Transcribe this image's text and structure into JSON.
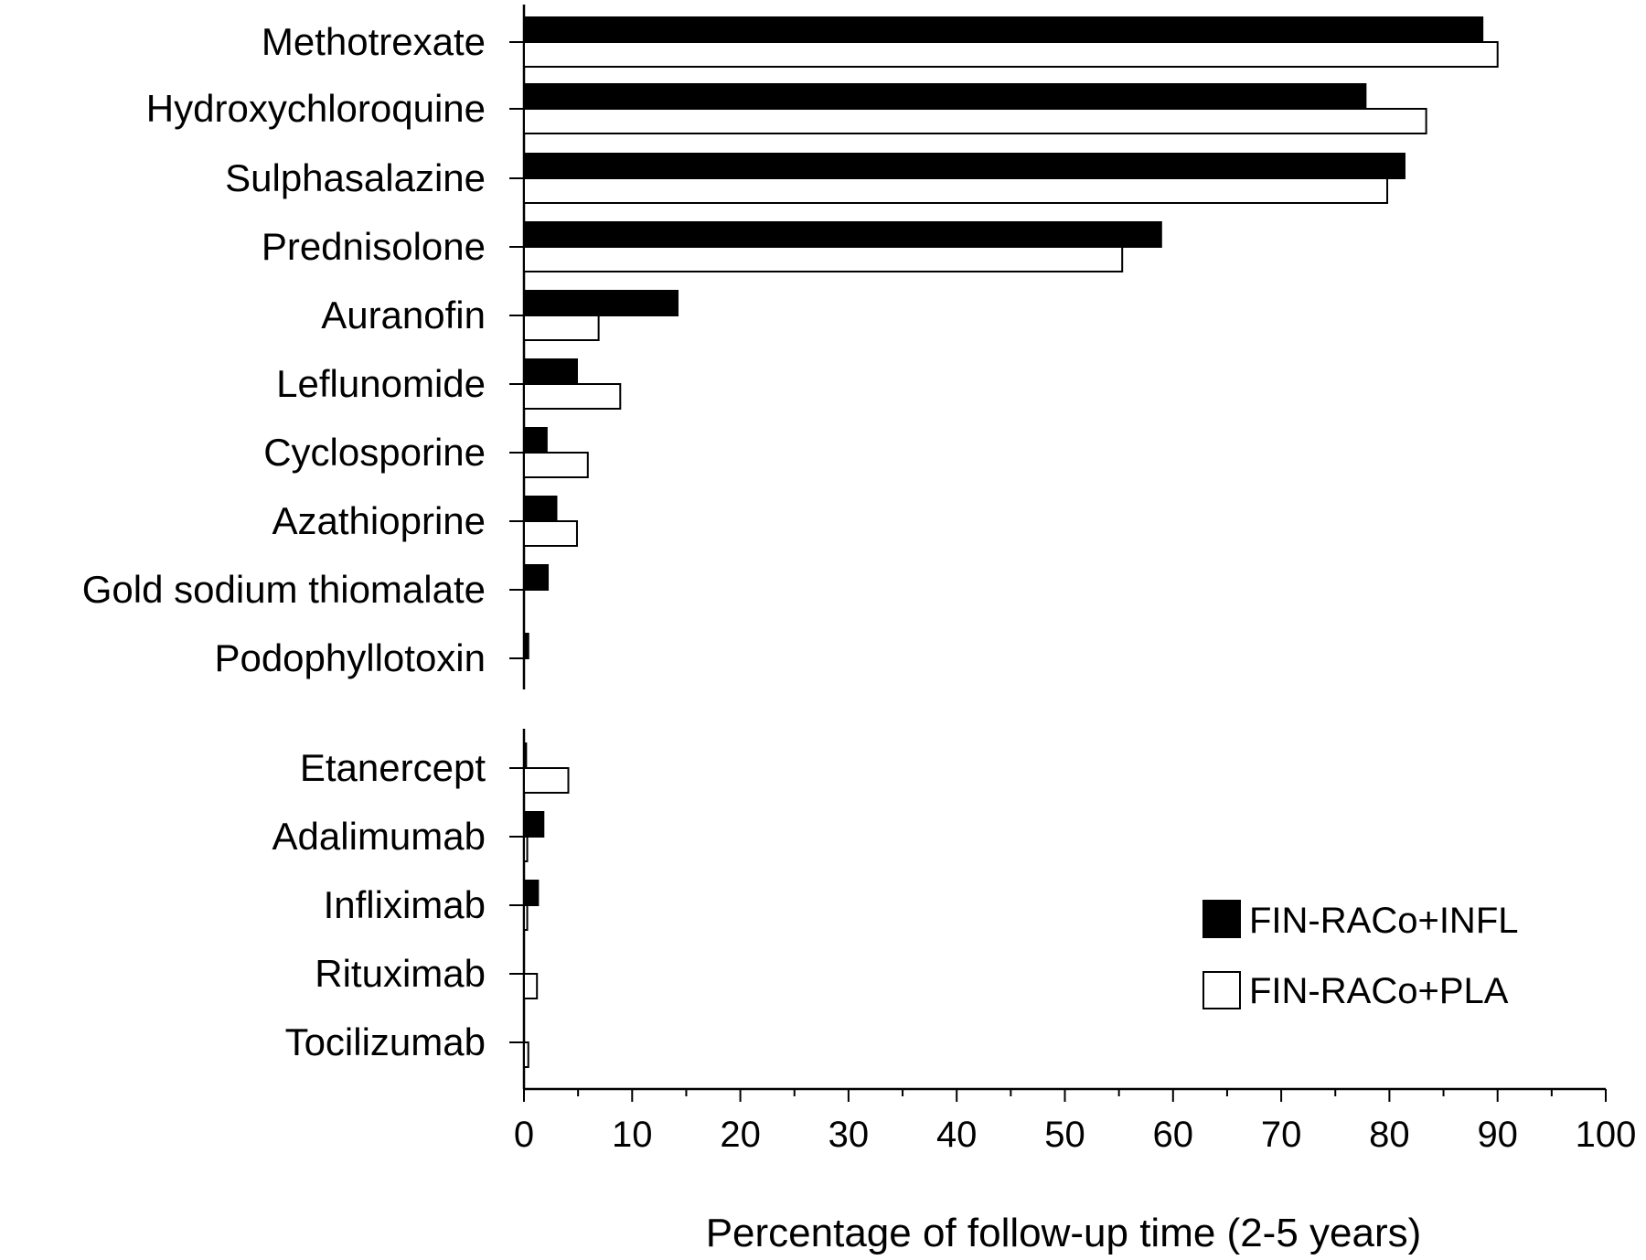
{
  "chart_data": {
    "type": "bar",
    "orientation": "horizontal",
    "title": "",
    "xlabel": "Percentage of follow-up time (2-5 years)",
    "ylabel": "",
    "xlim": [
      0,
      100
    ],
    "x_ticks": [
      "0",
      "10",
      "20",
      "30",
      "40",
      "50",
      "60",
      "70",
      "80",
      "90",
      "100"
    ],
    "grid": false,
    "legend_position": "bottom-right",
    "groups": [
      {
        "categories": [
          "Methotrexate",
          "Hydroxychloroquine",
          "Sulphasalazine",
          "Prednisolone",
          "Auranofin",
          "Leflunomide",
          "Cyclosporine",
          "Azathioprine",
          "Gold sodium thiomalate",
          "Podophyllotoxin"
        ]
      },
      {
        "categories": [
          "Etanercept",
          "Adalimumab",
          "Infliximab",
          "Rituximab",
          "Tocilizumab"
        ]
      }
    ],
    "categories": [
      "Methotrexate",
      "Hydroxychloroquine",
      "Sulphasalazine",
      "Prednisolone",
      "Auranofin",
      "Leflunomide",
      "Cyclosporine",
      "Azathioprine",
      "Gold sodium thiomalate",
      "Podophyllotoxin",
      "Etanercept",
      "Adalimumab",
      "Infliximab",
      "Rituximab",
      "Tocilizumab"
    ],
    "series": [
      {
        "name": "FIN-RACo+INFL",
        "color": "#000000",
        "values": [
          88.6,
          77.8,
          81.4,
          58.9,
          14.2,
          4.9,
          2.1,
          3.0,
          2.2,
          0.4,
          0.2,
          1.8,
          1.3,
          0.0,
          0.0
        ]
      },
      {
        "name": "FIN-RACo+PLA",
        "color": "#ffffff",
        "values": [
          90.0,
          83.4,
          79.8,
          55.3,
          6.9,
          8.9,
          5.9,
          4.9,
          0.0,
          0.0,
          4.1,
          0.3,
          0.3,
          1.2,
          0.4
        ]
      }
    ]
  }
}
